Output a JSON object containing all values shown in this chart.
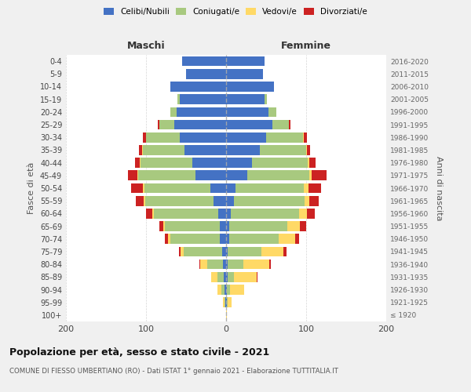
{
  "age_groups": [
    "100+",
    "95-99",
    "90-94",
    "85-89",
    "80-84",
    "75-79",
    "70-74",
    "65-69",
    "60-64",
    "55-59",
    "50-54",
    "45-49",
    "40-44",
    "35-39",
    "30-34",
    "25-29",
    "20-24",
    "15-19",
    "10-14",
    "5-9",
    "0-4"
  ],
  "birth_years": [
    "≤ 1920",
    "1921-1925",
    "1926-1930",
    "1931-1935",
    "1936-1940",
    "1941-1945",
    "1946-1950",
    "1951-1955",
    "1956-1960",
    "1961-1965",
    "1966-1970",
    "1971-1975",
    "1976-1980",
    "1981-1985",
    "1986-1990",
    "1991-1995",
    "1996-2000",
    "2001-2005",
    "2006-2010",
    "2011-2015",
    "2016-2020"
  ],
  "males": {
    "celibi": [
      0,
      1,
      2,
      3,
      4,
      5,
      8,
      8,
      10,
      16,
      20,
      38,
      42,
      52,
      58,
      65,
      62,
      58,
      70,
      50,
      55
    ],
    "coniugati": [
      0,
      1,
      4,
      8,
      20,
      48,
      62,
      68,
      80,
      85,
      82,
      72,
      65,
      52,
      42,
      18,
      8,
      3,
      0,
      0,
      0
    ],
    "vedovi": [
      0,
      2,
      5,
      8,
      8,
      4,
      3,
      2,
      2,
      2,
      2,
      1,
      1,
      1,
      0,
      0,
      0,
      0,
      0,
      0,
      0
    ],
    "divorziati": [
      0,
      0,
      0,
      0,
      1,
      2,
      3,
      5,
      8,
      10,
      15,
      12,
      6,
      4,
      4,
      2,
      0,
      0,
      0,
      0,
      0
    ]
  },
  "females": {
    "nubili": [
      0,
      1,
      1,
      2,
      2,
      2,
      4,
      4,
      6,
      10,
      12,
      26,
      32,
      42,
      50,
      58,
      53,
      48,
      60,
      46,
      48
    ],
    "coniugate": [
      0,
      1,
      4,
      8,
      20,
      42,
      62,
      72,
      85,
      88,
      85,
      78,
      70,
      58,
      46,
      20,
      10,
      3,
      0,
      0,
      0
    ],
    "vedove": [
      1,
      5,
      18,
      28,
      32,
      28,
      20,
      16,
      10,
      6,
      6,
      3,
      2,
      1,
      1,
      0,
      0,
      0,
      0,
      0,
      0
    ],
    "divorziate": [
      0,
      0,
      0,
      1,
      2,
      3,
      5,
      8,
      10,
      12,
      16,
      18,
      8,
      4,
      4,
      2,
      0,
      0,
      0,
      0,
      0
    ]
  },
  "colors": {
    "celibi": "#4472C4",
    "coniugati": "#A8C97F",
    "vedovi": "#FFD966",
    "divorziati": "#CC2222"
  },
  "xlim": 200,
  "title_main": "Popolazione per età, sesso e stato civile - 2021",
  "title_sub": "COMUNE DI FIESSO UMBERTIANO (RO) - Dati ISTAT 1° gennaio 2021 - Elaborazione TUTTITALIA.IT",
  "ylabel_left": "Fasce di età",
  "ylabel_right": "Anni di nascita",
  "xlabel_maschi": "Maschi",
  "xlabel_femmine": "Femmine",
  "bg_color": "#f0f0f0",
  "plot_bg": "#ffffff"
}
